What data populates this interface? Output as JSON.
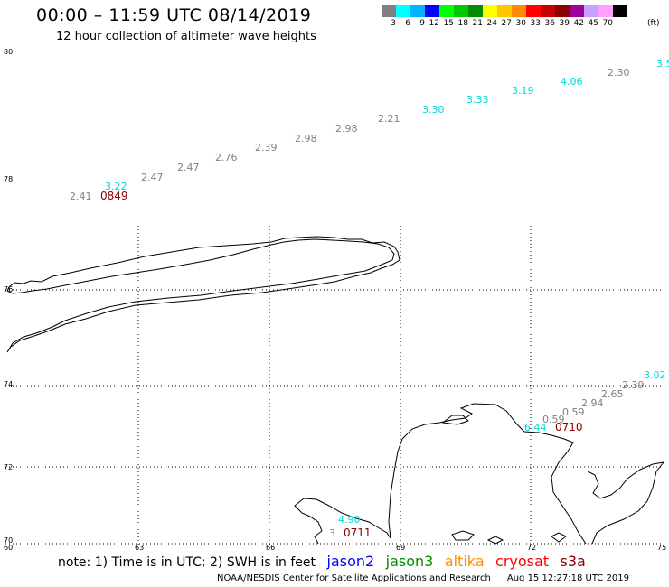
{
  "title": "00:00 – 11:59 UTC 08/14/2019",
  "subtitle": "12 hour collection of altimeter wave heights",
  "legend": {
    "colors": [
      "#808080",
      "#00ffff",
      "#00b4ff",
      "#0000ff",
      "#00ff00",
      "#00c800",
      "#008c00",
      "#ffff00",
      "#ffc800",
      "#ff8c00",
      "#ff0000",
      "#c80000",
      "#8b0000",
      "#a000a0",
      "#c8a0ff",
      "#ffa0ff",
      "#000000"
    ],
    "labels": [
      "3",
      "6",
      "9",
      "12",
      "15",
      "18",
      "21",
      "24",
      "27",
      "30",
      "33",
      "36",
      "39",
      "42",
      "45",
      "70"
    ],
    "unit": "(ft)"
  },
  "axes": {
    "lat_labels": [
      "80",
      "78",
      "76",
      "74",
      "72",
      "70"
    ],
    "lon_labels": [
      "60",
      "63",
      "66",
      "69",
      "72",
      "75"
    ]
  },
  "wave_heights": [
    {
      "text": "2.41",
      "color": "#808080"
    },
    {
      "text": "3.22",
      "color": "#00d8d8"
    },
    {
      "text": "2.47",
      "color": "#808080"
    },
    {
      "text": "2.47",
      "color": "#808080"
    },
    {
      "text": "2.76",
      "color": "#808080"
    },
    {
      "text": "2.39",
      "color": "#808080"
    },
    {
      "text": "2.98",
      "color": "#808080"
    },
    {
      "text": "2.98",
      "color": "#808080"
    },
    {
      "text": "2.21",
      "color": "#808080"
    },
    {
      "text": "3.30",
      "color": "#00d8d8"
    },
    {
      "text": "3.33",
      "color": "#00d8d8"
    },
    {
      "text": "3.19",
      "color": "#00d8d8"
    },
    {
      "text": "4.06",
      "color": "#00d8d8"
    },
    {
      "text": "2.30",
      "color": "#808080"
    },
    {
      "text": "3.5",
      "color": "#00d8d8"
    },
    {
      "text": "3.02",
      "color": "#00d8d8"
    },
    {
      "text": "2.39",
      "color": "#808080"
    },
    {
      "text": "2.65",
      "color": "#808080"
    },
    {
      "text": "2.94",
      "color": "#808080"
    },
    {
      "text": "0.59",
      "color": "#808080"
    },
    {
      "text": "0.59",
      "color": "#808080"
    },
    {
      "text": "6.44",
      "color": "#00d8d8"
    },
    {
      "text": "4.90",
      "color": "#00d8d8"
    },
    {
      "text": "3",
      "color": "#808080"
    }
  ],
  "pass_times": [
    {
      "text": "0849",
      "color": "#8b0000"
    },
    {
      "text": "0710",
      "color": "#8b0000"
    },
    {
      "text": "0711",
      "color": "#8b0000"
    }
  ],
  "note": {
    "text": "note: 1) Time is in UTC; 2) SWH is in feet",
    "satellites": [
      {
        "name": "jason2",
        "color": "#0000ff"
      },
      {
        "name": "jason3",
        "color": "#008c00"
      },
      {
        "name": "altika",
        "color": "#ff8c00"
      },
      {
        "name": "cryosat",
        "color": "#ff0000"
      },
      {
        "name": "s3a",
        "color": "#8b0000"
      }
    ]
  },
  "footer": {
    "credit": "NOAA/NESDIS Center for Satellite Applications and Research",
    "timestamp": "Aug 15 12:27:18 UTC 2019"
  }
}
